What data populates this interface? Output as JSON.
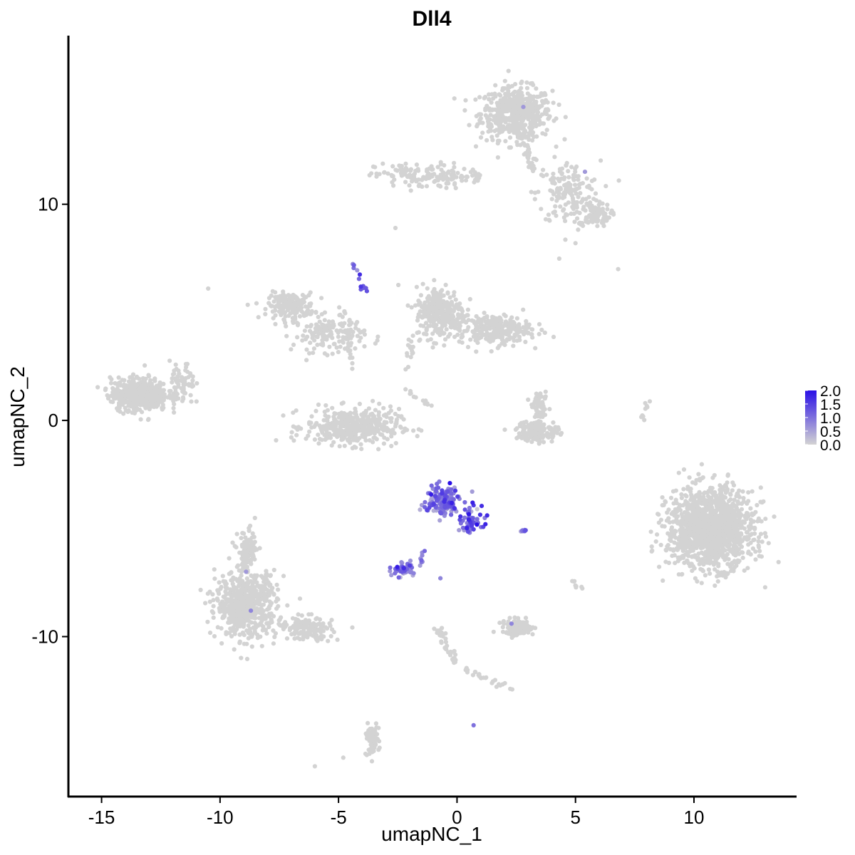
{
  "chart_data": {
    "type": "scatter",
    "title": "Dll4",
    "xlabel": "umapNC_1",
    "ylabel": "umapNC_2",
    "xlim": [
      -16.4,
      14.3
    ],
    "ylim": [
      -17.4,
      17.8
    ],
    "x_ticks": [
      -15,
      -10,
      -5,
      0,
      5,
      10
    ],
    "x_tick_labels": [
      "-15",
      "-10",
      "-5",
      "0",
      "5",
      "10"
    ],
    "y_ticks": [
      -10,
      0,
      10
    ],
    "y_tick_labels": [
      "-10",
      "0",
      "10"
    ],
    "grid": false,
    "legend_position": "right",
    "colors": {
      "low": "#d3d3d3",
      "high": "#2a0fe6",
      "axis": "#000000"
    },
    "color_scale": {
      "min": 0.0,
      "max": 2.0,
      "breaks": [
        0.0,
        0.5,
        1.0,
        1.5,
        2.0
      ],
      "labels": [
        "0.0",
        "0.5",
        "1.0",
        "1.5",
        "2.0"
      ]
    },
    "clusters": [
      {
        "cx": 2.5,
        "cy": 14.2,
        "sx": 1.0,
        "sy": 0.8,
        "n": 520,
        "expr": 0
      },
      {
        "cx": 4.7,
        "cy": 10.5,
        "sx": 0.9,
        "sy": 1.0,
        "n": 160,
        "expr": 0
      },
      {
        "cx": 5.8,
        "cy": 9.5,
        "sx": 0.45,
        "sy": 0.35,
        "n": 90,
        "expr": 0
      },
      {
        "cx": -1.5,
        "cy": 11.3,
        "sx": 1.3,
        "sy": 0.4,
        "n": 130,
        "expr": 0
      },
      {
        "cx": -7.0,
        "cy": 5.3,
        "sx": 0.65,
        "sy": 0.4,
        "n": 180,
        "expr": 0
      },
      {
        "cx": -5.4,
        "cy": 4.0,
        "sx": 1.0,
        "sy": 0.55,
        "n": 140,
        "expr": 0
      },
      {
        "cx": -4.4,
        "cy": -0.3,
        "sx": 1.3,
        "sy": 0.55,
        "n": 420,
        "expr": 0
      },
      {
        "cx": -0.7,
        "cy": 5.0,
        "sx": 0.7,
        "sy": 0.8,
        "n": 300,
        "expr": 0
      },
      {
        "cx": 1.6,
        "cy": 4.2,
        "sx": 1.0,
        "sy": 0.45,
        "n": 260,
        "expr": 0
      },
      {
        "cx": -13.4,
        "cy": 1.2,
        "sx": 0.8,
        "sy": 0.5,
        "n": 500,
        "expr": 0
      },
      {
        "cx": -11.6,
        "cy": 1.6,
        "sx": 0.35,
        "sy": 0.7,
        "n": 70,
        "expr": 0
      },
      {
        "cx": 10.7,
        "cy": -5.0,
        "sx": 1.2,
        "sy": 1.2,
        "n": 1400,
        "expr": 0
      },
      {
        "cx": -8.9,
        "cy": -8.5,
        "sx": 0.85,
        "sy": 1.0,
        "n": 620,
        "expr": 0
      },
      {
        "cx": -8.8,
        "cy": -6.0,
        "sx": 0.3,
        "sy": 0.6,
        "n": 90,
        "expr": 0
      },
      {
        "cx": -6.3,
        "cy": -9.6,
        "sx": 0.7,
        "sy": 0.35,
        "n": 110,
        "expr": 0
      },
      {
        "cx": 3.4,
        "cy": -0.5,
        "sx": 0.6,
        "sy": 0.35,
        "n": 140,
        "expr": 0
      },
      {
        "cx": 3.5,
        "cy": 0.6,
        "sx": 0.22,
        "sy": 0.4,
        "n": 60,
        "expr": 0
      },
      {
        "cx": 2.6,
        "cy": -9.6,
        "sx": 0.45,
        "sy": 0.25,
        "n": 110,
        "expr": 0
      },
      {
        "cx": -3.6,
        "cy": -14.8,
        "sx": 0.2,
        "sy": 0.45,
        "n": 70,
        "expr": 0
      },
      {
        "cx": -0.6,
        "cy": -3.7,
        "sx": 0.5,
        "sy": 0.45,
        "n": 160,
        "expr": 0.9
      },
      {
        "cx": 0.6,
        "cy": -4.6,
        "sx": 0.3,
        "sy": 0.45,
        "n": 60,
        "expr": 1.1
      },
      {
        "cx": -2.3,
        "cy": -6.9,
        "sx": 0.3,
        "sy": 0.2,
        "n": 55,
        "expr": 0.9
      },
      {
        "cx": 2.8,
        "cy": -5.1,
        "sx": 0.12,
        "sy": 0.06,
        "n": 8,
        "expr": 1.0
      }
    ],
    "paths": [
      {
        "x0": 2.6,
        "y0": 13.5,
        "x1": 3.2,
        "y1": 11.6,
        "n": 40,
        "w": 0.2,
        "expr": 0
      },
      {
        "x0": -0.6,
        "y0": 11.2,
        "x1": 1.0,
        "y1": 11.3,
        "n": 25,
        "w": 0.15,
        "expr": 0
      },
      {
        "x0": -4.5,
        "y0": 7.3,
        "x1": -3.8,
        "y1": 5.8,
        "n": 12,
        "w": 0.12,
        "expr": 1.0
      },
      {
        "x0": -4.9,
        "y0": 5.3,
        "x1": -4.4,
        "y1": 2.3,
        "n": 30,
        "w": 0.15,
        "expr": 0
      },
      {
        "x0": -1.9,
        "y0": 4.0,
        "x1": -2.1,
        "y1": 2.3,
        "n": 15,
        "w": 0.15,
        "expr": 0
      },
      {
        "x0": -2.2,
        "y0": 1.4,
        "x1": -1.1,
        "y1": 0.6,
        "n": 12,
        "w": 0.1,
        "expr": 0
      },
      {
        "x0": -1.4,
        "y0": -6.0,
        "x1": -1.6,
        "y1": -6.8,
        "n": 8,
        "w": 0.1,
        "expr": 0.8
      },
      {
        "x0": -0.8,
        "y0": -9.6,
        "x1": -0.1,
        "y1": -11.2,
        "n": 40,
        "w": 0.15,
        "expr": 0
      },
      {
        "x0": 0.4,
        "y0": -11.6,
        "x1": 2.4,
        "y1": -12.5,
        "n": 25,
        "w": 0.15,
        "expr": 0
      },
      {
        "x0": -7.5,
        "y0": -9.5,
        "x1": -5.5,
        "y1": -10.2,
        "n": 30,
        "w": 0.15,
        "expr": 0
      },
      {
        "x0": 8.1,
        "y0": 0.9,
        "x1": 7.8,
        "y1": 0.0,
        "n": 10,
        "w": 0.07,
        "expr": 0
      },
      {
        "x0": 4.9,
        "y0": -7.4,
        "x1": 5.2,
        "y1": -7.8,
        "n": 8,
        "w": 0.1,
        "expr": 0
      }
    ],
    "singles": [
      {
        "x": -10.5,
        "y": 6.1,
        "expr": 0
      },
      {
        "x": 6.8,
        "y": 7.0,
        "expr": 0
      },
      {
        "x": -2.6,
        "y": 8.9,
        "expr": 0
      },
      {
        "x": 5.0,
        "y": 8.2,
        "expr": 0
      },
      {
        "x": -6.0,
        "y": -16.0,
        "expr": 0
      },
      {
        "x": -4.8,
        "y": -15.6,
        "expr": 0
      },
      {
        "x": 0.7,
        "y": -14.1,
        "expr": 1.0
      },
      {
        "x": -0.7,
        "y": -7.3,
        "expr": 0.8
      },
      {
        "x": 2.3,
        "y": -9.4,
        "expr": 0.8
      },
      {
        "x": -8.7,
        "y": -8.8,
        "expr": 0.8
      },
      {
        "x": -8.9,
        "y": -7.0,
        "expr": 0.6
      },
      {
        "x": 2.8,
        "y": 14.5,
        "expr": 0.6
      },
      {
        "x": 5.4,
        "y": 11.5,
        "expr": 0.6
      },
      {
        "x": -0.3,
        "y": -2.9,
        "expr": 2.0
      },
      {
        "x": 1.2,
        "y": -4.8,
        "expr": 1.8
      }
    ]
  }
}
